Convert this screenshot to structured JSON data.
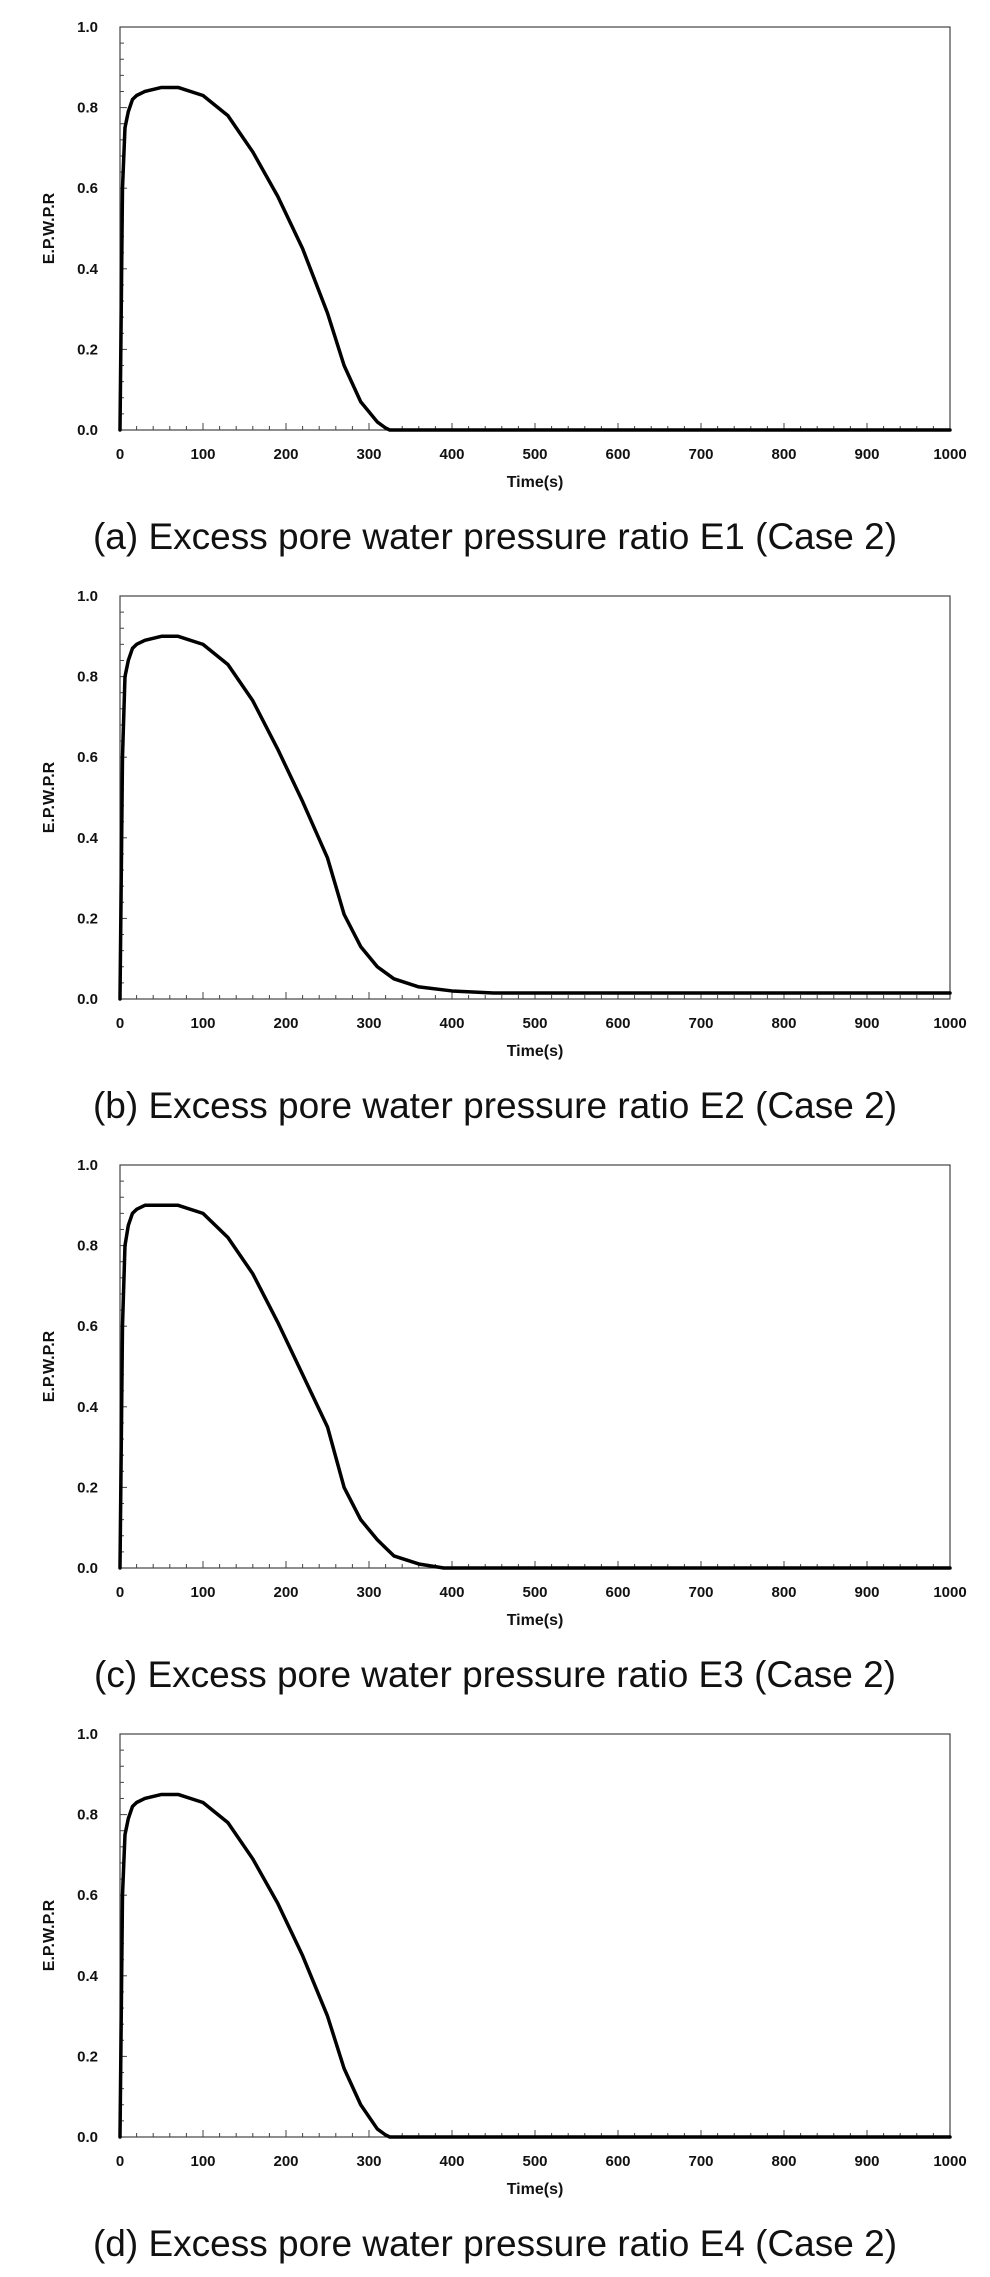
{
  "chart_data": [
    {
      "type": "line",
      "caption": "(a) Excess pore water pressure ratio E1 (Case 2)",
      "xlabel": "Time(s)",
      "ylabel": "E.P.W.P.R",
      "xlim": [
        0,
        1000
      ],
      "ylim": [
        0,
        1.0
      ],
      "x_ticks": [
        "0",
        "100",
        "200",
        "300",
        "400",
        "500",
        "600",
        "700",
        "800",
        "900",
        "1000"
      ],
      "y_ticks": [
        "0.0",
        "0.2",
        "0.4",
        "0.6",
        "0.8",
        "1.0"
      ],
      "grid": false,
      "line_color": "#000000",
      "series": [
        {
          "x": [
            0,
            3,
            6,
            10,
            15,
            20,
            30,
            50,
            70,
            100,
            130,
            160,
            190,
            220,
            250,
            270,
            290,
            310,
            320,
            325,
            330,
            400,
            500,
            600,
            700,
            800,
            900,
            1000
          ],
          "y": [
            0.0,
            0.6,
            0.75,
            0.79,
            0.82,
            0.83,
            0.84,
            0.85,
            0.85,
            0.83,
            0.78,
            0.69,
            0.58,
            0.45,
            0.29,
            0.16,
            0.07,
            0.02,
            0.005,
            0.0,
            0.0,
            0.0,
            0.0,
            0.0,
            0.0,
            0.0,
            0.0,
            0.0
          ]
        }
      ]
    },
    {
      "type": "line",
      "caption": "(b) Excess pore water pressure ratio E2 (Case 2)",
      "xlabel": "Time(s)",
      "ylabel": "E.P.W.P.R",
      "xlim": [
        0,
        1000
      ],
      "ylim": [
        0,
        1.0
      ],
      "x_ticks": [
        "0",
        "100",
        "200",
        "300",
        "400",
        "500",
        "600",
        "700",
        "800",
        "900",
        "1000"
      ],
      "y_ticks": [
        "0.0",
        "0.2",
        "0.4",
        "0.6",
        "0.8",
        "1.0"
      ],
      "grid": false,
      "line_color": "#000000",
      "series": [
        {
          "x": [
            0,
            3,
            6,
            10,
            15,
            20,
            30,
            50,
            70,
            100,
            130,
            160,
            190,
            220,
            250,
            270,
            290,
            310,
            330,
            360,
            400,
            450,
            500,
            600,
            700,
            800,
            900,
            1000
          ],
          "y": [
            0.0,
            0.6,
            0.8,
            0.84,
            0.87,
            0.88,
            0.89,
            0.9,
            0.9,
            0.88,
            0.83,
            0.74,
            0.62,
            0.49,
            0.35,
            0.21,
            0.13,
            0.08,
            0.05,
            0.03,
            0.02,
            0.015,
            0.015,
            0.015,
            0.015,
            0.015,
            0.015,
            0.015
          ]
        }
      ]
    },
    {
      "type": "line",
      "caption": "(c) Excess pore water pressure ratio E3 (Case 2)",
      "xlabel": "Time(s)",
      "ylabel": "E.P.W.P.R",
      "xlim": [
        0,
        1000
      ],
      "ylim": [
        0,
        1.0
      ],
      "x_ticks": [
        "0",
        "100",
        "200",
        "300",
        "400",
        "500",
        "600",
        "700",
        "800",
        "900",
        "1000"
      ],
      "y_ticks": [
        "0.0",
        "0.2",
        "0.4",
        "0.6",
        "0.8",
        "1.0"
      ],
      "grid": false,
      "line_color": "#000000",
      "series": [
        {
          "x": [
            0,
            3,
            6,
            10,
            15,
            20,
            30,
            50,
            70,
            100,
            130,
            160,
            190,
            220,
            250,
            270,
            290,
            310,
            330,
            360,
            390,
            410,
            500,
            600,
            700,
            800,
            900,
            1000
          ],
          "y": [
            0.0,
            0.6,
            0.8,
            0.85,
            0.88,
            0.89,
            0.9,
            0.9,
            0.9,
            0.88,
            0.82,
            0.73,
            0.61,
            0.48,
            0.35,
            0.2,
            0.12,
            0.07,
            0.03,
            0.01,
            0.0,
            0.0,
            0.0,
            0.0,
            0.0,
            0.0,
            0.0,
            0.0
          ]
        }
      ]
    },
    {
      "type": "line",
      "caption": "(d) Excess pore water pressure ratio E4 (Case 2)",
      "xlabel": "Time(s)",
      "ylabel": "E.P.W.P.R",
      "xlim": [
        0,
        1000
      ],
      "ylim": [
        0,
        1.0
      ],
      "x_ticks": [
        "0",
        "100",
        "200",
        "300",
        "400",
        "500",
        "600",
        "700",
        "800",
        "900",
        "1000"
      ],
      "y_ticks": [
        "0.0",
        "0.2",
        "0.4",
        "0.6",
        "0.8",
        "1.0"
      ],
      "grid": false,
      "line_color": "#000000",
      "series": [
        {
          "x": [
            0,
            3,
            6,
            10,
            15,
            20,
            30,
            50,
            70,
            100,
            130,
            160,
            190,
            220,
            250,
            270,
            290,
            310,
            320,
            325,
            330,
            400,
            500,
            600,
            700,
            800,
            900,
            1000
          ],
          "y": [
            0.0,
            0.6,
            0.75,
            0.79,
            0.82,
            0.83,
            0.84,
            0.85,
            0.85,
            0.83,
            0.78,
            0.69,
            0.58,
            0.45,
            0.3,
            0.17,
            0.08,
            0.02,
            0.005,
            0.0,
            0.0,
            0.0,
            0.0,
            0.0,
            0.0,
            0.0,
            0.0,
            0.0
          ]
        }
      ]
    }
  ]
}
